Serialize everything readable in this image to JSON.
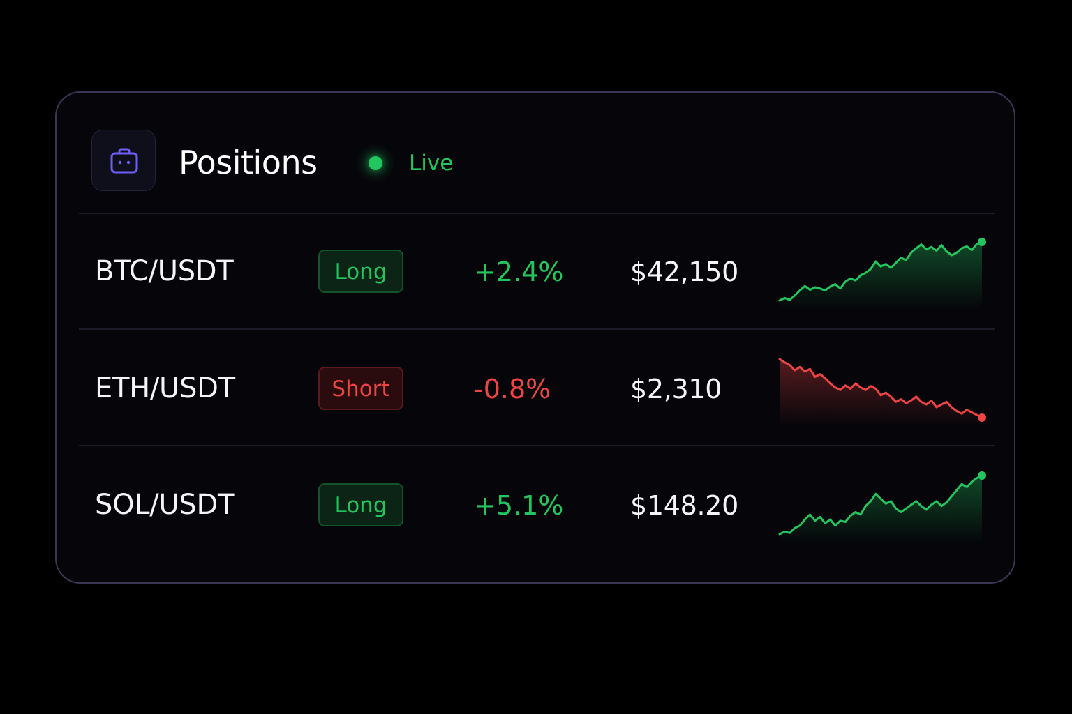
{
  "panel": {
    "title": "Positions",
    "status_label": "Live",
    "icon": "briefcase-icon",
    "accent_color": "#6d5ef5"
  },
  "colors": {
    "up": "#22c55e",
    "down": "#ef4444"
  },
  "positions": [
    {
      "pair": "BTC/USDT",
      "side": "Long",
      "side_type": "long",
      "change": "+2.4%",
      "direction": "up",
      "price": "$42,150",
      "sparkline": [
        12,
        16,
        13,
        20,
        28,
        35,
        29,
        33,
        31,
        28,
        34,
        38,
        31,
        42,
        47,
        44,
        52,
        56,
        62,
        74,
        66,
        70,
        64,
        72,
        80,
        76,
        88,
        95,
        101,
        93,
        97,
        91,
        100,
        90,
        84,
        88,
        95,
        98,
        92,
        102,
        105
      ]
    },
    {
      "pair": "ETH/USDT",
      "side": "Short",
      "side_type": "short",
      "change": "-0.8%",
      "direction": "down",
      "price": "$2,310",
      "sparkline": [
        95,
        90,
        86,
        78,
        83,
        76,
        80,
        68,
        72,
        66,
        58,
        52,
        48,
        55,
        50,
        58,
        52,
        48,
        54,
        50,
        40,
        44,
        38,
        30,
        34,
        28,
        32,
        38,
        30,
        26,
        32,
        22,
        26,
        30,
        22,
        16,
        12,
        18,
        14,
        10,
        6
      ]
    },
    {
      "pair": "SOL/USDT",
      "side": "Long",
      "side_type": "long",
      "change": "+5.1%",
      "direction": "up",
      "price": "$148.20",
      "sparkline": [
        8,
        12,
        10,
        18,
        22,
        32,
        40,
        30,
        36,
        26,
        32,
        22,
        30,
        28,
        38,
        44,
        40,
        54,
        62,
        74,
        66,
        58,
        62,
        50,
        44,
        50,
        56,
        62,
        54,
        48,
        56,
        62,
        54,
        60,
        70,
        80,
        90,
        85,
        94,
        100,
        104
      ]
    }
  ]
}
